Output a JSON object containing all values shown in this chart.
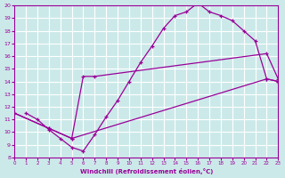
{
  "xlabel": "Windchill (Refroidissement éolien,°C)",
  "xlim": [
    0,
    23
  ],
  "ylim": [
    8,
    20
  ],
  "xticks": [
    0,
    1,
    2,
    3,
    4,
    5,
    6,
    7,
    8,
    9,
    10,
    11,
    12,
    13,
    14,
    15,
    16,
    17,
    18,
    19,
    20,
    21,
    22,
    23
  ],
  "yticks": [
    8,
    9,
    10,
    11,
    12,
    13,
    14,
    15,
    16,
    17,
    18,
    19,
    20
  ],
  "bg_color": "#cce9e9",
  "line_color": "#990099",
  "grid_color": "#ffffff",
  "line1_x": [
    1,
    2,
    3,
    4,
    5,
    6,
    7,
    8,
    9,
    10,
    11,
    12,
    13,
    14,
    15,
    16,
    17,
    18,
    19,
    20,
    21,
    22,
    23
  ],
  "line1_y": [
    11.5,
    11.0,
    10.2,
    9.5,
    8.8,
    8.5,
    9.8,
    11.2,
    12.5,
    14.0,
    15.5,
    16.8,
    18.2,
    19.2,
    19.5,
    20.2,
    19.5,
    19.2,
    18.8,
    18.0,
    17.2,
    14.2,
    14.0
  ],
  "line2_x": [
    0,
    3,
    5,
    6,
    7,
    22,
    23
  ],
  "line2_y": [
    11.5,
    10.3,
    9.5,
    14.4,
    14.4,
    16.2,
    14.2
  ],
  "line3_x": [
    0,
    3,
    5,
    22,
    23
  ],
  "line3_y": [
    11.5,
    10.3,
    9.5,
    14.2,
    14.0
  ]
}
